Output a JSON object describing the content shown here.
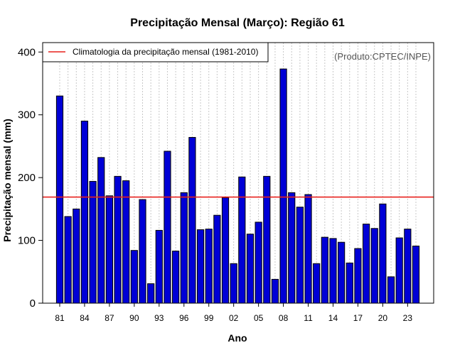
{
  "chart_data": {
    "type": "bar",
    "title": "Precipitação Mensal (Março): Região 61",
    "xlabel": "Ano",
    "ylabel": "Precipitação mensal (mm)",
    "ylim": [
      0,
      415
    ],
    "yticks": [
      "0",
      "100",
      "200",
      "300",
      "400"
    ],
    "ytick_values": [
      0,
      100,
      200,
      300,
      400
    ],
    "xtick_labels": [
      "81",
      "84",
      "87",
      "90",
      "93",
      "96",
      "99",
      "02",
      "05",
      "08",
      "11",
      "14",
      "17",
      "20",
      "23"
    ],
    "xtick_every": 3,
    "categories": [
      "1981",
      "1982",
      "1983",
      "1984",
      "1985",
      "1986",
      "1987",
      "1988",
      "1989",
      "1990",
      "1991",
      "1992",
      "1993",
      "1994",
      "1995",
      "1996",
      "1997",
      "1998",
      "1999",
      "2000",
      "2001",
      "2002",
      "2003",
      "2004",
      "2005",
      "2006",
      "2007",
      "2008",
      "2009",
      "2010",
      "2011",
      "2012",
      "2013",
      "2014",
      "2015",
      "2016",
      "2017",
      "2018",
      "2019",
      "2020",
      "2021",
      "2022",
      "2023",
      "2024"
    ],
    "values": [
      330,
      138,
      150,
      290,
      194,
      232,
      171,
      202,
      195,
      84,
      165,
      31,
      116,
      242,
      83,
      176,
      264,
      117,
      118,
      140,
      168,
      63,
      201,
      110,
      129,
      202,
      38,
      373,
      176,
      153,
      173,
      63,
      105,
      103,
      97,
      64,
      87,
      126,
      119,
      158,
      42,
      104,
      118,
      91
    ],
    "climatology": 169,
    "legend": {
      "label": "Climatologia da precipitação mensal (1981-2010)",
      "position": "top-left"
    },
    "annotation": "(Produto:CPTEC/INPE)",
    "grid": "vertical-dotted",
    "colors": {
      "bar": "#0000d6",
      "bar_edge": "#000000",
      "climatology": "#e8201c",
      "grid": "#c8c8c8",
      "annotation": "#555555"
    }
  }
}
